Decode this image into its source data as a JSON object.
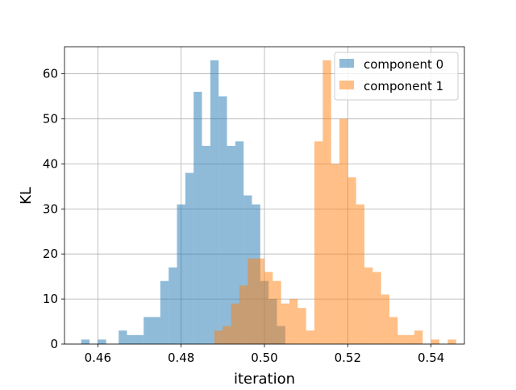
{
  "chart_data": {
    "type": "bar",
    "xlabel": "iteration",
    "ylabel": "KL",
    "xlim": [
      0.452,
      0.548
    ],
    "ylim": [
      0,
      66
    ],
    "grid": true,
    "legend_position": "top-right",
    "x_ticks": [
      {
        "value": 0.46,
        "label": "0.46"
      },
      {
        "value": 0.48,
        "label": "0.48"
      },
      {
        "value": 0.5,
        "label": "0.50"
      },
      {
        "value": 0.52,
        "label": "0.52"
      },
      {
        "value": 0.54,
        "label": "0.54"
      }
    ],
    "y_ticks": [
      {
        "value": 0,
        "label": "0"
      },
      {
        "value": 10,
        "label": "10"
      },
      {
        "value": 20,
        "label": "20"
      },
      {
        "value": 30,
        "label": "30"
      },
      {
        "value": 40,
        "label": "40"
      },
      {
        "value": 50,
        "label": "50"
      },
      {
        "value": 60,
        "label": "60"
      }
    ],
    "series": [
      {
        "name": "component 0",
        "color": "#1f77b4",
        "opacity": 0.5,
        "bin_width": 0.002,
        "bins": [
          [
            0.456,
            1
          ],
          [
            0.458,
            0
          ],
          [
            0.46,
            1
          ],
          [
            0.462,
            0
          ],
          [
            0.464,
            0
          ],
          [
            0.465,
            3
          ],
          [
            0.467,
            2
          ],
          [
            0.469,
            2
          ],
          [
            0.471,
            6
          ],
          [
            0.473,
            6
          ],
          [
            0.475,
            14
          ],
          [
            0.477,
            17
          ],
          [
            0.479,
            31
          ],
          [
            0.481,
            38
          ],
          [
            0.483,
            56
          ],
          [
            0.485,
            44
          ],
          [
            0.487,
            63
          ],
          [
            0.489,
            55
          ],
          [
            0.491,
            44
          ],
          [
            0.493,
            45
          ],
          [
            0.495,
            33
          ],
          [
            0.497,
            31
          ],
          [
            0.499,
            14
          ],
          [
            0.501,
            10
          ],
          [
            0.503,
            4
          ],
          [
            0.505,
            0
          ],
          [
            0.507,
            0
          ]
        ]
      },
      {
        "name": "component 1",
        "color": "#ff7f0e",
        "opacity": 0.5,
        "bin_width": 0.002,
        "bins": [
          [
            0.488,
            3
          ],
          [
            0.49,
            4
          ],
          [
            0.492,
            9
          ],
          [
            0.494,
            13
          ],
          [
            0.496,
            19
          ],
          [
            0.498,
            19
          ],
          [
            0.5,
            16
          ],
          [
            0.502,
            14
          ],
          [
            0.504,
            9
          ],
          [
            0.506,
            10
          ],
          [
            0.508,
            8
          ],
          [
            0.51,
            3
          ],
          [
            0.512,
            45
          ],
          [
            0.514,
            63
          ],
          [
            0.516,
            40
          ],
          [
            0.518,
            50
          ],
          [
            0.52,
            37
          ],
          [
            0.522,
            31
          ],
          [
            0.524,
            17
          ],
          [
            0.526,
            16
          ],
          [
            0.528,
            11
          ],
          [
            0.53,
            6
          ],
          [
            0.532,
            2
          ],
          [
            0.534,
            2
          ],
          [
            0.536,
            3
          ],
          [
            0.538,
            0
          ],
          [
            0.54,
            1
          ],
          [
            0.542,
            0
          ],
          [
            0.544,
            1
          ]
        ]
      }
    ]
  }
}
